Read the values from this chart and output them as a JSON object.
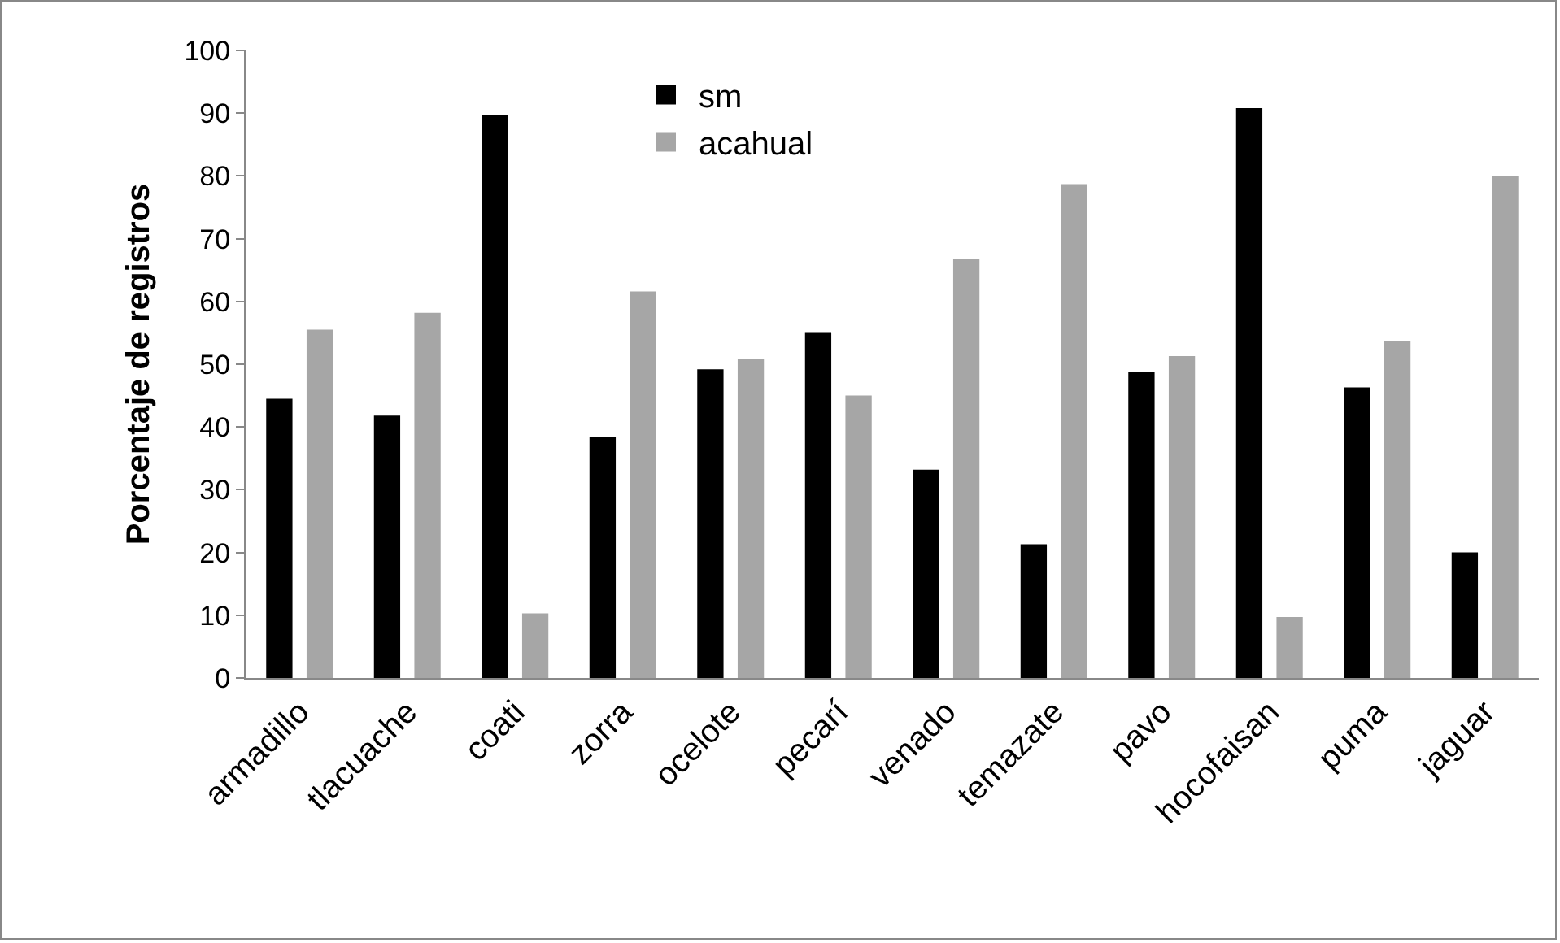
{
  "chart_data": {
    "type": "bar",
    "ylabel": "Porcentaje de registros",
    "categories": [
      "armadillo",
      "tlacuache",
      "coati",
      "zorra",
      "ocelote",
      "pecarí",
      "venado",
      "temazate",
      "pavo",
      "hocofaisan",
      "puma",
      "jaguar"
    ],
    "series": [
      {
        "name": "sm",
        "color": "#000000",
        "values": [
          44.5,
          41.8,
          89.7,
          38.4,
          49.2,
          55,
          33.2,
          21.3,
          48.7,
          90.8,
          46.3,
          20
        ]
      },
      {
        "name": "acahual",
        "color": "#a6a6a6",
        "values": [
          55.5,
          58.2,
          10.3,
          61.6,
          50.8,
          45,
          66.8,
          78.7,
          51.3,
          9.7,
          53.7,
          80
        ]
      }
    ],
    "ylim": [
      0,
      100
    ],
    "yticks": [
      0,
      10,
      20,
      30,
      40,
      50,
      60,
      70,
      80,
      90,
      100
    ],
    "grid": false,
    "legend": "top"
  }
}
